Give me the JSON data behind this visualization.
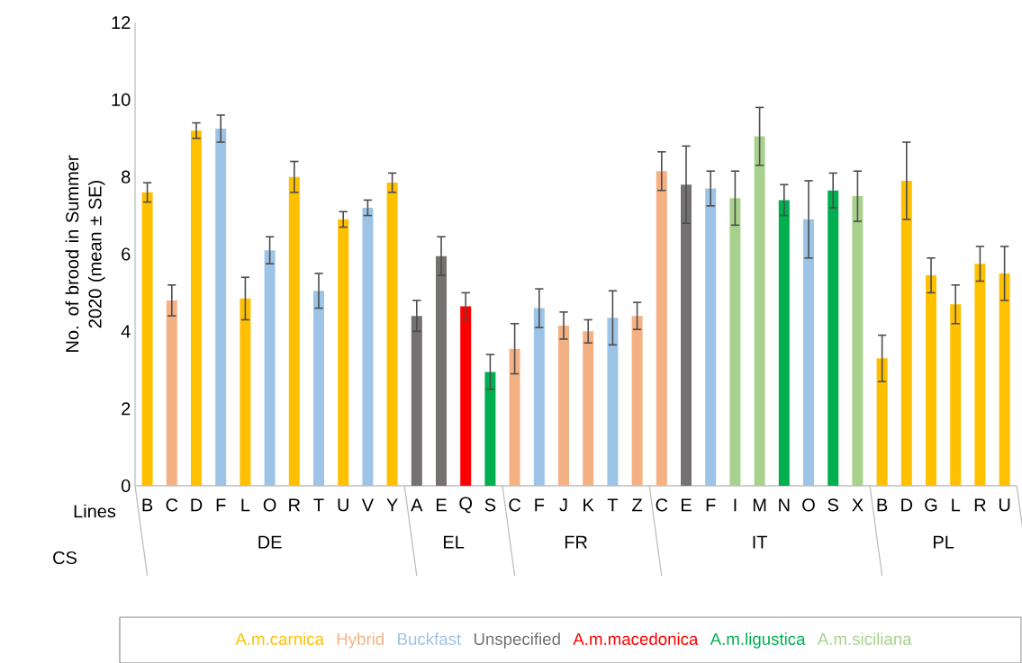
{
  "chart_data": [
    {
      "type": "bar",
      "xlabel": "DE",
      "ylabel": "No. of brood in Summer 2020 (mean ± SE)",
      "ylim": [
        0,
        12
      ],
      "yticks": [
        0,
        2,
        4,
        6,
        8,
        10,
        12
      ],
      "legend": "bottom",
      "annotations": [
        "Lines",
        "CS"
      ],
      "categories": [
        "B",
        "C",
        "D",
        "F",
        "L",
        "O",
        "R",
        "T",
        "U",
        "V",
        "Y"
      ],
      "series": [
        {
          "name": "A.m.carnica",
          "color": "#ffc000",
          "values": [
            7.6,
            null,
            9.2,
            null,
            4.85,
            null,
            8.0,
            null,
            6.9,
            null,
            7.85
          ],
          "errors": [
            0.25,
            null,
            0.2,
            null,
            0.55,
            null,
            0.4,
            null,
            0.2,
            null,
            0.25
          ]
        },
        {
          "name": "Hybrid",
          "color": "#f4b183",
          "values": [
            null,
            4.8,
            null,
            null,
            null,
            null,
            null,
            null,
            null,
            null,
            null
          ],
          "errors": [
            null,
            0.4,
            null,
            null,
            null,
            null,
            null,
            null,
            null,
            null,
            null
          ]
        },
        {
          "name": "Buckfast",
          "color": "#9dc3e6",
          "values": [
            null,
            null,
            null,
            9.25,
            null,
            6.1,
            null,
            5.05,
            null,
            7.2,
            null
          ],
          "errors": [
            null,
            null,
            null,
            0.35,
            null,
            0.35,
            null,
            0.45,
            null,
            0.2,
            null
          ]
        }
      ]
    },
    {
      "type": "bar",
      "xlabel": "EL",
      "ylim": [
        0,
        12
      ],
      "tick_labels": "x",
      "categories": [
        "A",
        "E",
        "Q",
        "S"
      ],
      "series": [
        {
          "name": "Unspecified",
          "color": "#767171",
          "values": [
            4.4,
            5.95,
            null,
            null
          ],
          "errors": [
            0.4,
            0.5,
            null,
            null
          ]
        },
        {
          "name": "A.m.macedonica",
          "color": "#ff0000",
          "values": [
            null,
            null,
            4.65,
            null
          ],
          "errors": [
            null,
            null,
            0.35,
            null
          ]
        },
        {
          "name": "A.m.ligustica",
          "color": "#00b050",
          "values": [
            null,
            null,
            null,
            2.95
          ],
          "errors": [
            null,
            null,
            null,
            0.45
          ]
        }
      ]
    },
    {
      "type": "bar",
      "xlabel": "FR",
      "ylim": [
        0,
        12
      ],
      "tick_labels": "x",
      "categories": [
        "C",
        "F",
        "J",
        "K",
        "T",
        "Z"
      ],
      "series": [
        {
          "color": "#f4b183",
          "values": [
            3.55,
            null,
            4.15,
            4.0,
            null,
            4.4
          ],
          "errors": [
            0.65,
            null,
            0.35,
            0.3,
            null,
            0.35
          ]
        },
        {
          "color": "#9dc3e6",
          "values": [
            null,
            4.6,
            null,
            null,
            4.35,
            null
          ],
          "errors": [
            null,
            0.5,
            null,
            null,
            0.7,
            null
          ]
        }
      ]
    },
    {
      "type": "bar",
      "xlabel": "IT",
      "ylim": [
        0,
        12
      ],
      "tick_labels": "x",
      "categories": [
        "C",
        "E",
        "F",
        "I",
        "M",
        "N",
        "O",
        "S",
        "X"
      ],
      "series": [
        {
          "color": "#f4b183",
          "values": [
            8.15,
            null,
            null,
            null,
            null,
            null,
            null,
            null,
            null
          ],
          "errors": [
            0.5,
            null,
            null,
            null,
            null,
            null,
            null,
            null,
            null
          ]
        },
        {
          "color": "#767171",
          "values": [
            null,
            7.8,
            null,
            null,
            null,
            null,
            null,
            null,
            null
          ],
          "errors": [
            null,
            1.0,
            null,
            null,
            null,
            null,
            null,
            null,
            null
          ]
        },
        {
          "color": "#9dc3e6",
          "values": [
            null,
            null,
            7.7,
            null,
            null,
            null,
            6.9,
            null,
            null
          ],
          "errors": [
            null,
            null,
            0.45,
            null,
            null,
            null,
            1.0,
            null,
            null
          ]
        },
        {
          "name": "A.m.siciliana",
          "color": "#a9d18e",
          "values": [
            null,
            null,
            null,
            7.45,
            9.05,
            null,
            null,
            null,
            7.5
          ],
          "errors": [
            null,
            null,
            null,
            0.7,
            0.75,
            null,
            null,
            null,
            0.65
          ]
        },
        {
          "color": "#00b050",
          "values": [
            null,
            null,
            null,
            null,
            null,
            7.4,
            null,
            7.65,
            null
          ],
          "errors": [
            null,
            null,
            null,
            null,
            null,
            0.4,
            null,
            0.45,
            null
          ]
        }
      ]
    },
    {
      "type": "bar",
      "xlabel": "PL",
      "ylim": [
        0,
        12
      ],
      "tick_labels": "x",
      "categories": [
        "B",
        "D",
        "G",
        "L",
        "R",
        "U"
      ],
      "series": [
        {
          "color": "#ffc000",
          "values": [
            3.3,
            7.9,
            5.45,
            4.7,
            5.75,
            5.5
          ],
          "errors": [
            0.6,
            1.0,
            0.45,
            0.5,
            0.45,
            0.7
          ]
        }
      ]
    }
  ]
}
